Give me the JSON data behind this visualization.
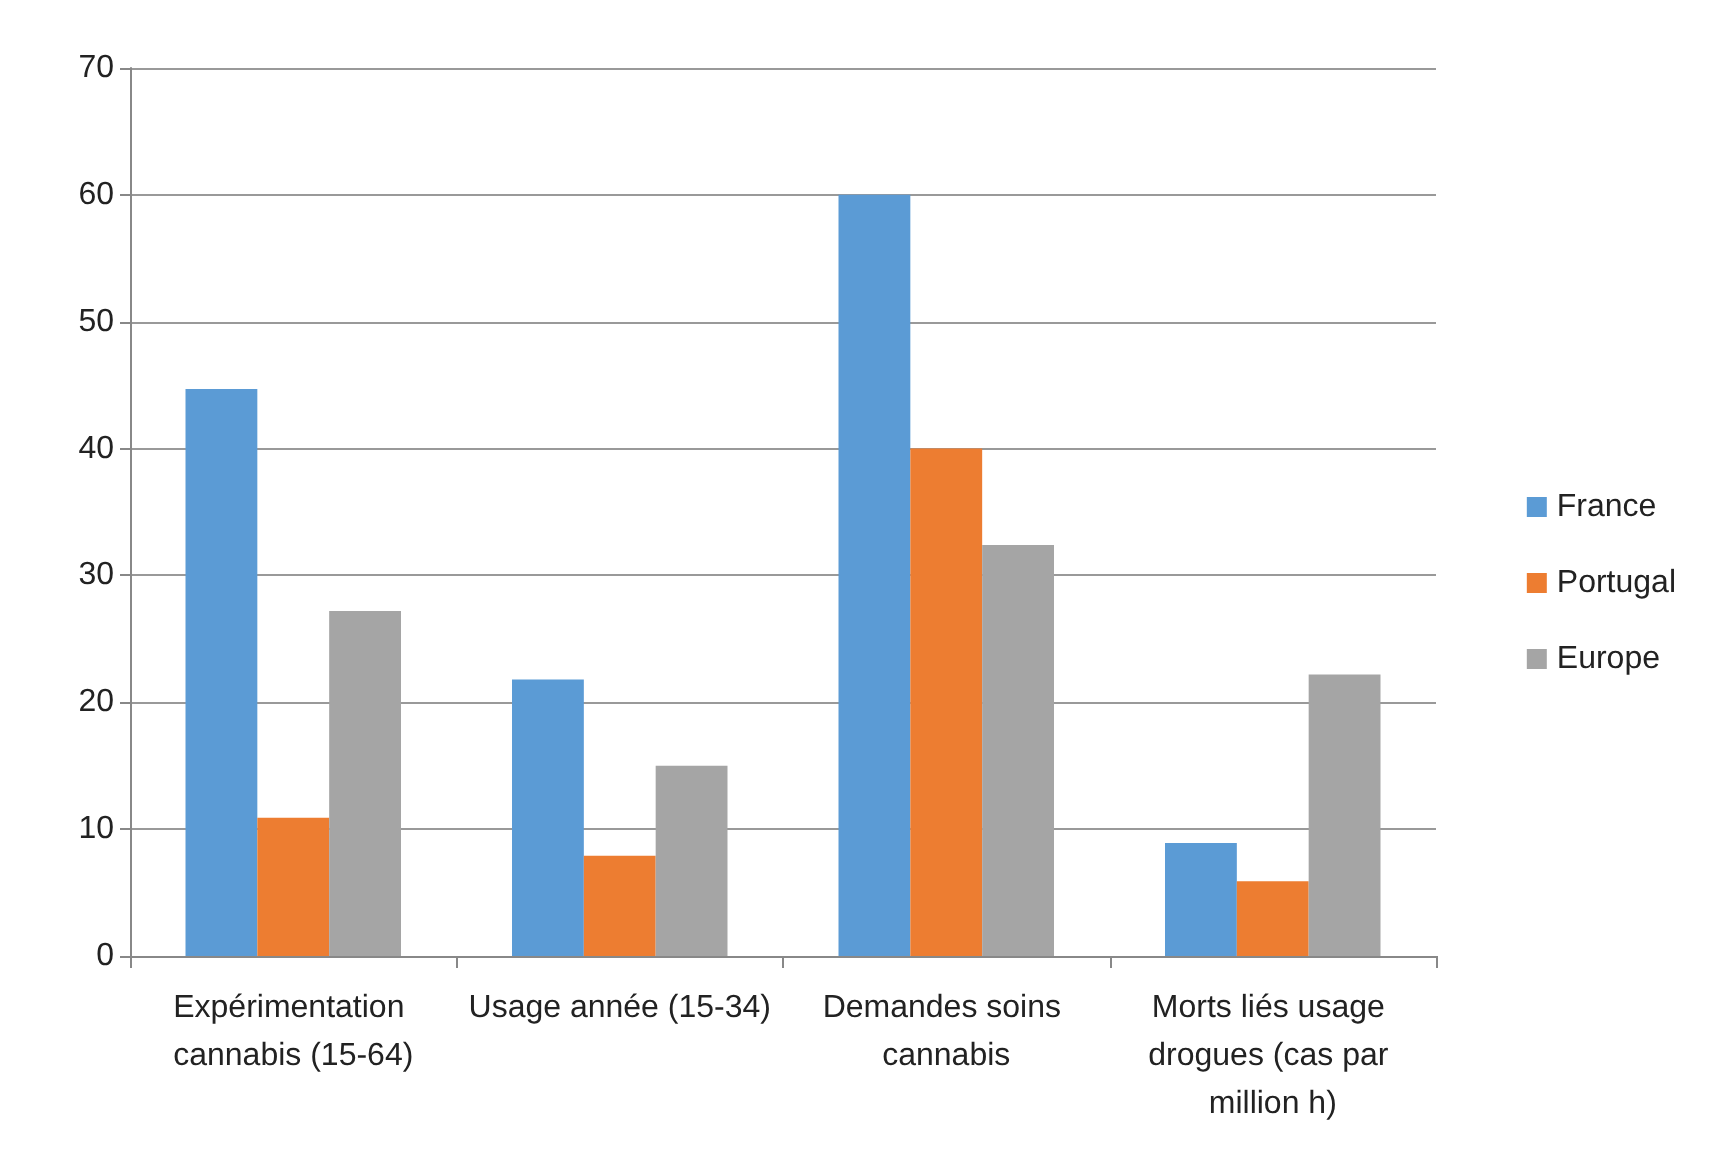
{
  "chart_data": {
    "type": "bar",
    "categories": [
      "Expérimentation cannabis (15-64)",
      "Usage année (15-34)",
      "Demandes soins cannabis",
      "Morts liés usage drogues (cas par million h)"
    ],
    "series": [
      {
        "name": "France",
        "color": "#5b9bd5",
        "values": [
          44.7,
          21.8,
          60,
          8.9
        ]
      },
      {
        "name": "Portugal",
        "color": "#ed7d31",
        "values": [
          10.9,
          7.9,
          40,
          5.9
        ]
      },
      {
        "name": "Europe",
        "color": "#a5a5a5",
        "values": [
          27.2,
          15,
          32.4,
          22.2
        ]
      }
    ],
    "ylim": [
      0,
      70
    ],
    "yticks": [
      0,
      10,
      20,
      30,
      40,
      50,
      60,
      70
    ],
    "grid": "y",
    "legend": "right"
  }
}
